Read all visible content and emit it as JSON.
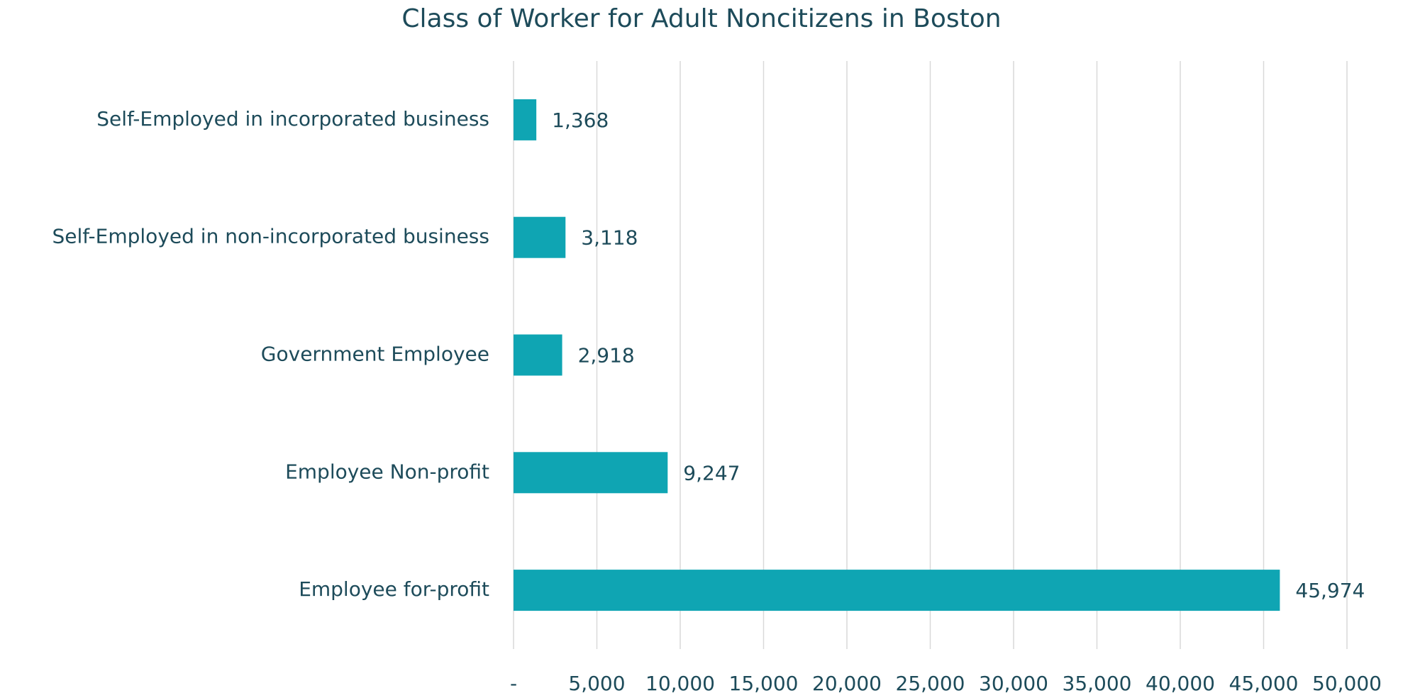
{
  "chart_data": {
    "type": "bar",
    "orientation": "horizontal",
    "title": "Class of Worker for Adult Noncitizens in Boston",
    "categories": [
      "Self-Employed in incorporated business",
      "Self-Employed in non-incorporated business",
      "Government Employee",
      "Employee Non-profit",
      "Employee for-profit"
    ],
    "values": [
      1368,
      3118,
      2918,
      9247,
      45974
    ],
    "value_labels": [
      "1,368",
      "3,118",
      "2,918",
      "9,247",
      "45,974"
    ],
    "color": "#0fa5b3",
    "xlim": [
      0,
      50000
    ],
    "xticks": [
      {
        "value": 0,
        "label": "-"
      },
      {
        "value": 5000,
        "label": "5,000"
      },
      {
        "value": 10000,
        "label": "10,000"
      },
      {
        "value": 15000,
        "label": "15,000"
      },
      {
        "value": 20000,
        "label": "20,000"
      },
      {
        "value": 25000,
        "label": "25,000"
      },
      {
        "value": 30000,
        "label": "30,000"
      },
      {
        "value": 35000,
        "label": "35,000"
      },
      {
        "value": 40000,
        "label": "40,000"
      },
      {
        "value": 45000,
        "label": "45,000"
      },
      {
        "value": 50000,
        "label": "50,000"
      }
    ],
    "grid": true
  }
}
